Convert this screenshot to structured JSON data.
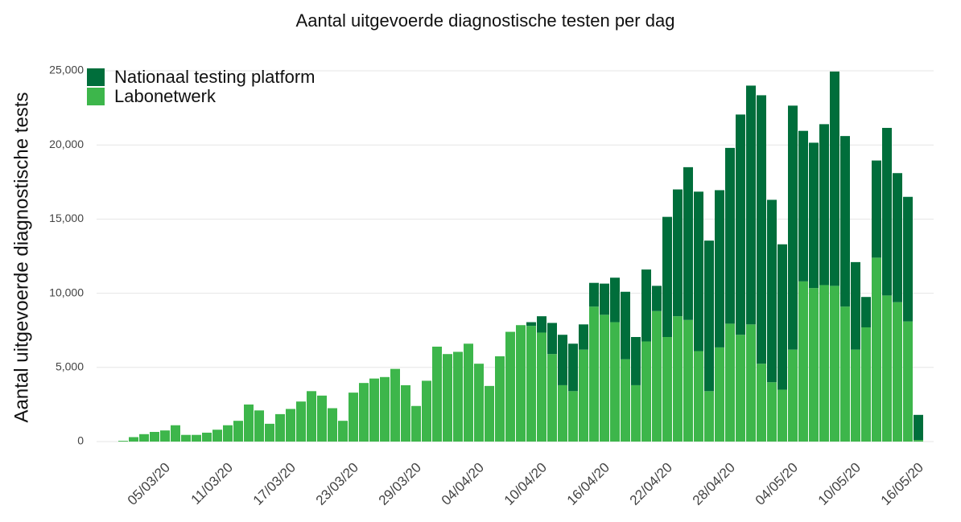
{
  "chart_data": {
    "type": "bar",
    "stacked": true,
    "title": "Aantal uitgevoerde diagnostische testen per dag",
    "y_label": "Aantal uitgevoerde diagnostische tests",
    "categories": [
      null,
      null,
      null,
      null,
      "05/03/20",
      null,
      null,
      null,
      null,
      null,
      "11/03/20",
      null,
      null,
      null,
      null,
      null,
      "17/03/20",
      null,
      null,
      null,
      null,
      null,
      "23/03/20",
      null,
      null,
      null,
      null,
      null,
      "29/03/20",
      null,
      null,
      null,
      null,
      null,
      "04/04/20",
      null,
      null,
      null,
      null,
      null,
      "10/04/20",
      null,
      null,
      null,
      null,
      null,
      "16/04/20",
      null,
      null,
      null,
      null,
      null,
      "22/04/20",
      null,
      null,
      null,
      null,
      null,
      "28/04/20",
      null,
      null,
      null,
      null,
      null,
      "04/05/20",
      null,
      null,
      null,
      null,
      null,
      "10/05/20",
      null,
      null,
      null,
      null,
      null,
      "16/05/20"
    ],
    "series": [
      {
        "name": "Nationaal testing platform",
        "color": "#006e3b",
        "values": [
          0,
          0,
          0,
          0,
          0,
          0,
          0,
          0,
          0,
          0,
          0,
          0,
          0,
          0,
          0,
          0,
          0,
          0,
          0,
          0,
          0,
          0,
          0,
          0,
          0,
          0,
          0,
          0,
          0,
          0,
          0,
          0,
          0,
          0,
          0,
          0,
          0,
          0,
          0,
          250,
          1100,
          2100,
          3400,
          3200,
          1700,
          1600,
          2100,
          3000,
          4550,
          3250,
          4850,
          1700,
          8100,
          8550,
          10300,
          10750,
          10150,
          10600,
          11850,
          14850,
          16100,
          18100,
          12300,
          9800,
          16450,
          10150,
          9800,
          10850,
          14450,
          11500,
          5900,
          2050,
          6550,
          11300,
          8700,
          8400,
          1700
        ]
      },
      {
        "name": "Labonetwerk",
        "color": "#3db64b",
        "values": [
          50,
          300,
          500,
          650,
          750,
          1100,
          450,
          450,
          600,
          800,
          1100,
          1400,
          2500,
          2100,
          1200,
          1850,
          2200,
          2700,
          3400,
          3100,
          2250,
          1400,
          3300,
          3950,
          4250,
          4350,
          4900,
          3800,
          2400,
          4100,
          6400,
          5900,
          6050,
          6600,
          5250,
          3750,
          5750,
          7400,
          7850,
          7800,
          7350,
          5900,
          3800,
          3400,
          6200,
          9100,
          8550,
          8050,
          5550,
          3800,
          6750,
          8800,
          7050,
          8450,
          8200,
          6100,
          3400,
          6350,
          7950,
          7200,
          7900,
          5250,
          4000,
          3500,
          6200,
          10800,
          10350,
          10550,
          10500,
          9100,
          6200,
          7700,
          12400,
          9850,
          9400,
          8100,
          100
        ]
      }
    ],
    "ylim": [
      0,
      25000
    ],
    "yticks": [
      0,
      {
        "value": 5000,
        "label": "5,000"
      },
      {
        "value": 10000,
        "label": "10,000"
      },
      {
        "value": 15000,
        "label": "15,000"
      },
      {
        "value": 20000,
        "label": "20,000"
      },
      {
        "value": 25000,
        "label": "25,000"
      }
    ],
    "grid": true,
    "legend": "top-left"
  }
}
